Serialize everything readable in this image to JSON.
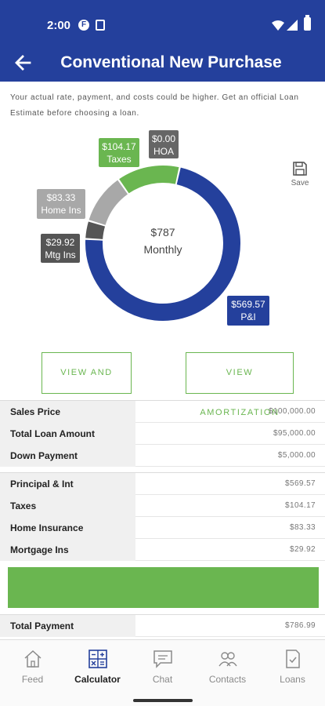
{
  "status_bar": {
    "time": "2:00",
    "icons": [
      "f-badge-icon",
      "sim-card-icon",
      "wifi-icon",
      "signal-icon",
      "battery-icon"
    ]
  },
  "app_bar": {
    "title": "Conventional New Purchase",
    "back_icon": "arrow-left-icon"
  },
  "disclaimer": "Your actual rate, payment, and costs could be higher. Get an official Loan Estimate before choosing a loan.",
  "chart_data": {
    "type": "pie",
    "style": "donut",
    "center_value": "$787",
    "center_label": "Monthly",
    "slices": [
      {
        "label": "P&I",
        "value": 569.57,
        "display": "$569.57",
        "color": "#24409c"
      },
      {
        "label": "Mtg Ins",
        "value": 29.92,
        "display": "$29.92",
        "color": "#555555"
      },
      {
        "label": "Home Ins",
        "value": 83.33,
        "display": "$83.33",
        "color": "#a8a8a8"
      },
      {
        "label": "Taxes",
        "value": 104.17,
        "display": "$104.17",
        "color": "#6ab650"
      },
      {
        "label": "HOA",
        "value": 0.0,
        "display": "$0.00",
        "color": "#666666"
      }
    ]
  },
  "save": {
    "label": "Save",
    "icon": "save-icon"
  },
  "buttons": {
    "share": "VIEW AND SHARE",
    "amortization": "VIEW AMORTIZATION"
  },
  "loan_rows": [
    {
      "label": "Sales Price",
      "value": "$100,000.00"
    },
    {
      "label": "Total Loan Amount",
      "value": "$95,000.00"
    },
    {
      "label": "Down Payment",
      "value": "$5,000.00"
    }
  ],
  "payment_rows": [
    {
      "label": "Principal & Int",
      "value": "$569.57"
    },
    {
      "label": "Taxes",
      "value": "$104.17"
    },
    {
      "label": "Home Insurance",
      "value": "$83.33"
    },
    {
      "label": "Mortgage Ins",
      "value": "$29.92"
    }
  ],
  "total_row": {
    "label": "Total Payment",
    "value": "$786.99"
  },
  "colors": {
    "brand_blue": "#24409c",
    "accent_green": "#6ab650"
  },
  "bottom_nav": [
    {
      "label": "Feed",
      "icon": "home-icon",
      "active": false
    },
    {
      "label": "Calculator",
      "icon": "calculator-icon",
      "active": true
    },
    {
      "label": "Chat",
      "icon": "chat-icon",
      "active": false
    },
    {
      "label": "Contacts",
      "icon": "contacts-icon",
      "active": false
    },
    {
      "label": "Loans",
      "icon": "document-icon",
      "active": false
    }
  ]
}
